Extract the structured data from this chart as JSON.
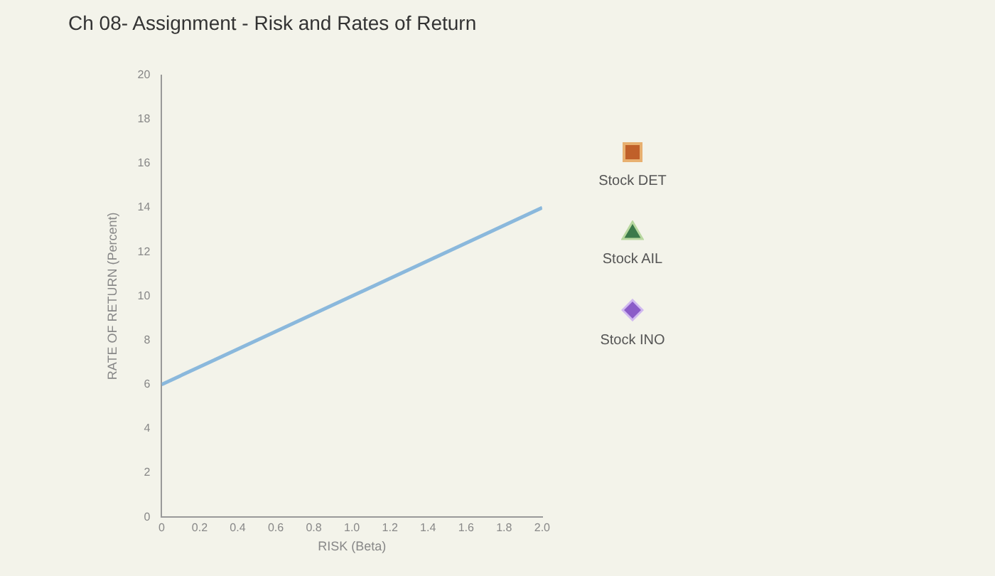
{
  "chart_data": {
    "type": "line",
    "title": "Ch 08- Assignment - Risk and Rates of Return",
    "xlabel": "RISK (Beta)",
    "ylabel": "RATE OF RETURN (Percent)",
    "x": [
      0,
      2
    ],
    "series": [
      {
        "color": "#8ab8dc",
        "values": [
          6,
          14
        ]
      }
    ],
    "xlim": [
      0,
      2
    ],
    "xticks": [
      0,
      0.2,
      0.4,
      0.6,
      0.8,
      {
        "value": 1,
        "label": "1.0"
      },
      1.2,
      1.4,
      1.6,
      1.8,
      {
        "value": 2,
        "label": "2.0"
      }
    ],
    "ylim": [
      0,
      20
    ],
    "yticks": [
      0,
      2,
      4,
      6,
      8,
      10,
      12,
      14,
      16,
      18,
      20
    ],
    "grid": false,
    "legend": false,
    "marker": "none",
    "line_style": "solid",
    "annotations": [
      "Stock DET",
      "Stock AIL",
      "Stock INO"
    ]
  }
}
